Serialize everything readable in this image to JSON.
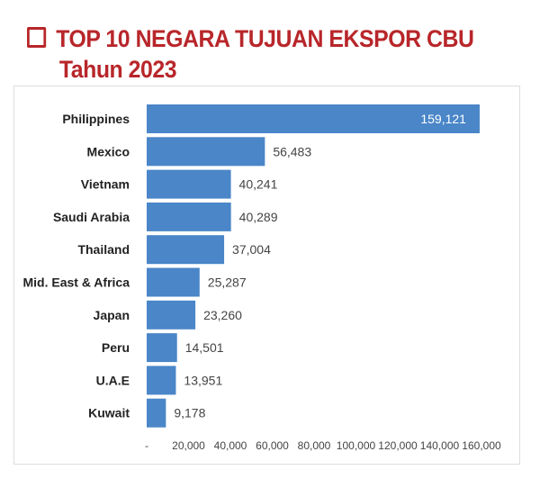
{
  "chart_data": {
    "type": "bar",
    "orientation": "horizontal",
    "title": "TOP 10 NEGARA TUJUAN EKSPOR CBU",
    "subtitle": "Tahun 2023",
    "categories": [
      "Philippines",
      "Mexico",
      "Vietnam",
      "Saudi Arabia",
      "Thailand",
      "Mid. East & Africa",
      "Japan",
      "Peru",
      "U.A.E",
      "Kuwait"
    ],
    "values": [
      159121,
      56483,
      40241,
      40289,
      37004,
      25287,
      23260,
      14501,
      13951,
      9178
    ],
    "value_labels": [
      "159,121",
      "56,483",
      "40,241",
      "40,289",
      "37,004",
      "25,287",
      "23,260",
      "14,501",
      "13,951",
      "9,178"
    ],
    "xlim": [
      0,
      160000
    ],
    "xticks": [
      0,
      20000,
      40000,
      60000,
      80000,
      100000,
      120000,
      140000,
      160000
    ],
    "xtick_labels": [
      "-",
      "20,000",
      "40,000",
      "60,000",
      "80,000",
      "100,000",
      "120,000",
      "140,000",
      "160,000"
    ],
    "xlabel": "",
    "ylabel": "",
    "grid": false,
    "bar_color": "#4a86c8",
    "title_color": "#b8262a"
  }
}
